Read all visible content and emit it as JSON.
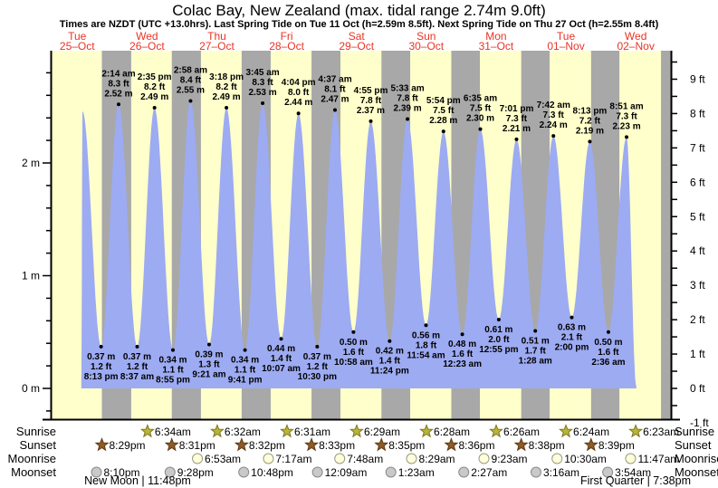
{
  "title": "Colac Bay, New Zealand (max. tidal range 2.74m 9.0ft)",
  "subtitle": "Times are NZDT (UTC +13.0hrs). Last Spring Tide on Tue 11 Oct (h=2.59m 8.5ft). Next Spring Tide on Thu 27 Oct (h=2.55m 8.4ft)",
  "colors": {
    "day_bg": "#ffffcc",
    "night_band": "#a8a8a8",
    "tide_fill": "#9dabf2",
    "day_label": "#e93325",
    "text": "#000000",
    "sunrise_star_fill": "#b9b43a",
    "sunrise_star_stroke": "#7d7a20",
    "sunset_star_fill": "#8e5a26",
    "sunset_star_stroke": "#5f3b14",
    "moonrise_fill": "#ffffdd",
    "moonrise_stroke": "#9a9a7a",
    "moonset_fill": "#c9c9c9",
    "moonset_stroke": "#8a8a8a"
  },
  "chart_data": {
    "type": "area",
    "title": "Colac Bay, New Zealand (max. tidal range 2.74m 9.0ft)",
    "xlabel": "",
    "ylabel_left": "m",
    "ylabel_right": "ft",
    "ylim_m": [
      -0.3,
      3.0
    ],
    "grid": false,
    "day_labels": [
      {
        "dow": "Tue",
        "date": "25–Oct"
      },
      {
        "dow": "Wed",
        "date": "26–Oct"
      },
      {
        "dow": "Thu",
        "date": "27–Oct"
      },
      {
        "dow": "Fri",
        "date": "28–Oct"
      },
      {
        "dow": "Sat",
        "date": "29–Oct"
      },
      {
        "dow": "Sun",
        "date": "30–Oct"
      },
      {
        "dow": "Mon",
        "date": "31–Oct"
      },
      {
        "dow": "Tue",
        "date": "01–Nov"
      },
      {
        "dow": "Wed",
        "date": "02–Nov"
      }
    ],
    "m_ticks": [
      {
        "h": 0,
        "label": "0 m"
      },
      {
        "h": 1,
        "label": "1 m"
      },
      {
        "h": 2,
        "label": "2 m"
      }
    ],
    "ft_ticks": [
      {
        "ft": -1,
        "label": "-1 ft"
      },
      {
        "ft": 0,
        "label": "0 ft"
      },
      {
        "ft": 1,
        "label": "1 ft"
      },
      {
        "ft": 2,
        "label": "2 ft"
      },
      {
        "ft": 3,
        "label": "3 ft"
      },
      {
        "ft": 4,
        "label": "4 ft"
      },
      {
        "ft": 5,
        "label": "5 ft"
      },
      {
        "ft": 6,
        "label": "6 ft"
      },
      {
        "ft": 7,
        "label": "7 ft"
      },
      {
        "ft": 8,
        "label": "8 ft"
      },
      {
        "ft": 9,
        "label": "9 ft"
      }
    ],
    "nights": [
      [
        20.483,
        30.567
      ],
      [
        44.517,
        54.533
      ],
      [
        68.533,
        78.517
      ],
      [
        92.55,
        102.483
      ],
      [
        116.583,
        126.467
      ],
      [
        140.6,
        150.433
      ],
      [
        164.633,
        174.4
      ],
      [
        188.65,
        198.383
      ],
      [
        212.683,
        217.0
      ]
    ],
    "extremes": [
      {
        "t": 13.4,
        "h": 0.05,
        "kind": "edge"
      },
      {
        "t": 13.83,
        "h": 2.46,
        "kind": "high"
      },
      {
        "t": 20.217,
        "h": 0.37,
        "kind": "low",
        "time": "8:13 pm",
        "ft": "1.2 ft",
        "m": "0.37 m"
      },
      {
        "t": 26.233,
        "h": 2.52,
        "kind": "high",
        "time": "2:14 am",
        "ft": "8.3 ft",
        "m": "2.52 m"
      },
      {
        "t": 32.617,
        "h": 0.37,
        "kind": "low",
        "time": "8:37 am",
        "ft": "1.2 ft",
        "m": "0.37 m"
      },
      {
        "t": 38.583,
        "h": 2.49,
        "kind": "high",
        "time": "2:35 pm",
        "ft": "8.2 ft",
        "m": "2.49 m"
      },
      {
        "t": 44.917,
        "h": 0.34,
        "kind": "low",
        "time": "8:55 pm",
        "ft": "1.1 ft",
        "m": "0.34 m"
      },
      {
        "t": 50.967,
        "h": 2.55,
        "kind": "high",
        "time": "2:58 am",
        "ft": "8.4 ft",
        "m": "2.55 m"
      },
      {
        "t": 57.35,
        "h": 0.39,
        "kind": "low",
        "time": "9:21 am",
        "ft": "1.3 ft",
        "m": "0.39 m"
      },
      {
        "t": 63.3,
        "h": 2.49,
        "kind": "high",
        "time": "3:18 pm",
        "ft": "8.2 ft",
        "m": "2.49 m"
      },
      {
        "t": 69.683,
        "h": 0.34,
        "kind": "low",
        "time": "9:41 pm",
        "ft": "1.1 ft",
        "m": "0.34 m"
      },
      {
        "t": 75.75,
        "h": 2.53,
        "kind": "high",
        "time": "3:45 am",
        "ft": "8.3 ft",
        "m": "2.53 m"
      },
      {
        "t": 82.117,
        "h": 0.44,
        "kind": "low",
        "time": "10:07 am",
        "ft": "1.4 ft",
        "m": "0.44 m"
      },
      {
        "t": 88.067,
        "h": 2.44,
        "kind": "high",
        "time": "4:04 pm",
        "ft": "8.0 ft",
        "m": "2.44 m"
      },
      {
        "t": 94.5,
        "h": 0.37,
        "kind": "low",
        "time": "10:30 pm",
        "ft": "1.2 ft",
        "m": "0.37 m"
      },
      {
        "t": 100.617,
        "h": 2.47,
        "kind": "high",
        "time": "4:37 am",
        "ft": "8.1 ft",
        "m": "2.47 m"
      },
      {
        "t": 106.967,
        "h": 0.5,
        "kind": "low",
        "time": "10:58 am",
        "ft": "1.6 ft",
        "m": "0.50 m"
      },
      {
        "t": 112.917,
        "h": 2.37,
        "kind": "high",
        "time": "4:55 pm",
        "ft": "7.8 ft",
        "m": "2.37 m"
      },
      {
        "t": 119.4,
        "h": 0.42,
        "kind": "low",
        "time": "11:24 pm",
        "ft": "1.4 ft",
        "m": "0.42 m"
      },
      {
        "t": 125.55,
        "h": 2.39,
        "kind": "high",
        "time": "5:33 am",
        "ft": "7.8 ft",
        "m": "2.39 m"
      },
      {
        "t": 131.9,
        "h": 0.56,
        "kind": "low",
        "time": "11:54 am",
        "ft": "1.8 ft",
        "m": "0.56 m"
      },
      {
        "t": 137.9,
        "h": 2.28,
        "kind": "high",
        "time": "5:54 pm",
        "ft": "7.5 ft",
        "m": "2.28 m"
      },
      {
        "t": 144.383,
        "h": 0.48,
        "kind": "low",
        "time": "12:23 am",
        "ft": "1.6 ft",
        "m": "0.48 m"
      },
      {
        "t": 150.583,
        "h": 2.3,
        "kind": "high",
        "time": "6:35 am",
        "ft": "7.5 ft",
        "m": "2.30 m"
      },
      {
        "t": 156.917,
        "h": 0.61,
        "kind": "low",
        "time": "12:55 pm",
        "ft": "2.0 ft",
        "m": "0.61 m"
      },
      {
        "t": 163.017,
        "h": 2.21,
        "kind": "high",
        "time": "7:01 pm",
        "ft": "7.3 ft",
        "m": "2.21 m"
      },
      {
        "t": 169.467,
        "h": 0.51,
        "kind": "low",
        "time": "1:28 am",
        "ft": "1.7 ft",
        "m": "0.51 m"
      },
      {
        "t": 175.7,
        "h": 2.24,
        "kind": "high",
        "time": "7:42 am",
        "ft": "7.3 ft",
        "m": "2.24 m"
      },
      {
        "t": 182.0,
        "h": 0.63,
        "kind": "low",
        "time": "2:00 pm",
        "ft": "2.1 ft",
        "m": "0.63 m"
      },
      {
        "t": 188.217,
        "h": 2.19,
        "kind": "high",
        "time": "8:13 pm",
        "ft": "7.2 ft",
        "m": "2.19 m"
      },
      {
        "t": 194.6,
        "h": 0.5,
        "kind": "low",
        "time": "2:36 am",
        "ft": "1.6 ft",
        "m": "0.50 m"
      },
      {
        "t": 200.85,
        "h": 2.23,
        "kind": "high",
        "time": "8:51 am",
        "ft": "7.3 ft",
        "m": "2.23 m"
      },
      {
        "t": 204.2,
        "h": 0.02,
        "kind": "edge"
      }
    ]
  },
  "astro": {
    "rows": [
      {
        "id": "sunrise",
        "label": "Sunrise",
        "entries": [
          {
            "t": 30.567,
            "time": "6:34am"
          },
          {
            "t": 54.533,
            "time": "6:32am"
          },
          {
            "t": 78.517,
            "time": "6:31am"
          },
          {
            "t": 102.483,
            "time": "6:29am"
          },
          {
            "t": 126.467,
            "time": "6:28am"
          },
          {
            "t": 150.433,
            "time": "6:26am"
          },
          {
            "t": 174.4,
            "time": "6:24am"
          },
          {
            "t": 198.383,
            "time": "6:23am"
          }
        ]
      },
      {
        "id": "sunset",
        "label": "Sunset",
        "entries": [
          {
            "t": 20.483,
            "time": "8:29pm"
          },
          {
            "t": 44.517,
            "time": "8:31pm"
          },
          {
            "t": 68.533,
            "time": "8:32pm"
          },
          {
            "t": 92.55,
            "time": "8:33pm"
          },
          {
            "t": 116.583,
            "time": "8:35pm"
          },
          {
            "t": 140.6,
            "time": "8:36pm"
          },
          {
            "t": 164.633,
            "time": "8:38pm"
          },
          {
            "t": 188.65,
            "time": "8:39pm"
          }
        ]
      },
      {
        "id": "moonrise",
        "label": "Moonrise",
        "entries": [
          {
            "t": 54.883,
            "time": "6:53am"
          },
          {
            "t": 79.283,
            "time": "7:17am"
          },
          {
            "t": 103.8,
            "time": "7:48am"
          },
          {
            "t": 128.483,
            "time": "8:29am"
          },
          {
            "t": 153.383,
            "time": "9:23am"
          },
          {
            "t": 178.5,
            "time": "10:30am"
          },
          {
            "t": 203.783,
            "time": "11:47am"
          }
        ]
      },
      {
        "id": "moonset",
        "label": "Moonset",
        "entries": [
          {
            "t": 20.167,
            "time": "8:10pm"
          },
          {
            "t": 45.467,
            "time": "9:28pm"
          },
          {
            "t": 70.8,
            "time": "10:48pm"
          },
          {
            "t": 96.15,
            "time": "12:09am"
          },
          {
            "t": 121.383,
            "time": "1:23am"
          },
          {
            "t": 146.45,
            "time": "2:27am"
          },
          {
            "t": 171.267,
            "time": "3:16am"
          },
          {
            "t": 195.9,
            "time": "3:54am"
          }
        ]
      }
    ],
    "phases": [
      {
        "label": "New Moon | 11:48pm"
      },
      {
        "label": "First Quarter | 7:38pm"
      }
    ]
  }
}
